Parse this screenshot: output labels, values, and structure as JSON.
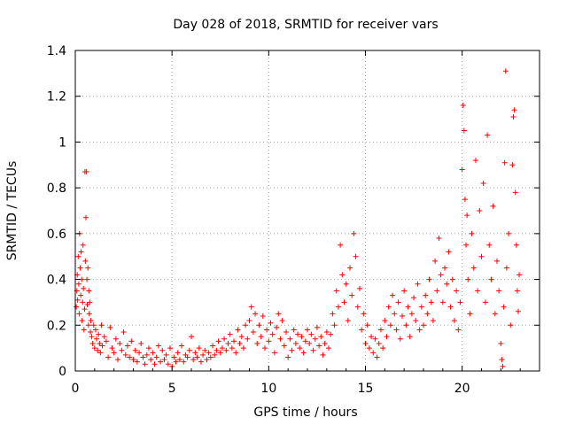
{
  "chart_data": {
    "type": "scatter",
    "title": "Day 028 of 2018, SRMTID for receiver vars",
    "xlabel": "GPS time / hours",
    "ylabel": "SRMTID / TECUs",
    "xlim": [
      0,
      24
    ],
    "ylim": [
      0,
      1.4
    ],
    "xticks": [
      0,
      5,
      10,
      15,
      20
    ],
    "yticks": [
      0,
      0.2,
      0.4,
      0.6,
      0.8,
      1,
      1.2,
      1.4
    ],
    "xtick_labels": [
      "0",
      "5",
      "10",
      "15",
      "20"
    ],
    "ytick_labels": [
      "0",
      "0.2",
      "0.4",
      "0.6",
      "0.8",
      "1",
      "1.2",
      "1.4"
    ],
    "grid": true,
    "marker": "+",
    "color": "#ff0000",
    "series": [
      {
        "name": "SRMTID",
        "points": [
          [
            0.05,
            0.28
          ],
          [
            0.08,
            0.35
          ],
          [
            0.1,
            0.42
          ],
          [
            0.12,
            0.31
          ],
          [
            0.15,
            0.5
          ],
          [
            0.18,
            0.38
          ],
          [
            0.2,
            0.25
          ],
          [
            0.22,
            0.6
          ],
          [
            0.25,
            0.45
          ],
          [
            0.28,
            0.33
          ],
          [
            0.3,
            0.52
          ],
          [
            0.33,
            0.4
          ],
          [
            0.35,
            0.22
          ],
          [
            0.38,
            0.3
          ],
          [
            0.4,
            0.55
          ],
          [
            0.42,
            0.36
          ],
          [
            0.45,
            0.18
          ],
          [
            0.48,
            0.27
          ],
          [
            0.5,
            0.87
          ],
          [
            0.52,
            0.48
          ],
          [
            0.55,
            0.67
          ],
          [
            0.58,
            0.87
          ],
          [
            0.6,
            0.4
          ],
          [
            0.62,
            0.29
          ],
          [
            0.65,
            0.45
          ],
          [
            0.68,
            0.2
          ],
          [
            0.7,
            0.35
          ],
          [
            0.72,
            0.25
          ],
          [
            0.75,
            0.3
          ],
          [
            0.78,
            0.17
          ],
          [
            0.8,
            0.22
          ],
          [
            0.85,
            0.15
          ],
          [
            0.9,
            0.12
          ],
          [
            0.95,
            0.2
          ],
          [
            1.0,
            0.1
          ],
          [
            1.05,
            0.18
          ],
          [
            1.1,
            0.14
          ],
          [
            1.15,
            0.09
          ],
          [
            1.2,
            0.16
          ],
          [
            1.25,
            0.12
          ],
          [
            1.3,
            0.08
          ],
          [
            1.35,
            0.2
          ],
          [
            1.4,
            0.11
          ],
          [
            1.5,
            0.15
          ],
          [
            1.6,
            0.13
          ],
          [
            1.7,
            0.06
          ],
          [
            1.8,
            0.19
          ],
          [
            1.9,
            0.1
          ],
          [
            2.0,
            0.08
          ],
          [
            2.1,
            0.14
          ],
          [
            2.2,
            0.05
          ],
          [
            2.3,
            0.12
          ],
          [
            2.4,
            0.09
          ],
          [
            2.5,
            0.17
          ],
          [
            2.6,
            0.07
          ],
          [
            2.7,
            0.11
          ],
          [
            2.8,
            0.06
          ],
          [
            2.9,
            0.13
          ],
          [
            3.0,
            0.05
          ],
          [
            3.1,
            0.09
          ],
          [
            3.2,
            0.04
          ],
          [
            3.3,
            0.08
          ],
          [
            3.4,
            0.12
          ],
          [
            3.5,
            0.06
          ],
          [
            3.6,
            0.03
          ],
          [
            3.7,
            0.07
          ],
          [
            3.8,
            0.1
          ],
          [
            3.9,
            0.05
          ],
          [
            4.0,
            0.08
          ],
          [
            4.1,
            0.03
          ],
          [
            4.2,
            0.06
          ],
          [
            4.3,
            0.11
          ],
          [
            4.4,
            0.04
          ],
          [
            4.5,
            0.09
          ],
          [
            4.6,
            0.05
          ],
          [
            4.7,
            0.07
          ],
          [
            4.8,
            0.03
          ],
          [
            4.9,
            0.1
          ],
          [
            5.0,
            0.02
          ],
          [
            5.1,
            0.06
          ],
          [
            5.2,
            0.04
          ],
          [
            5.3,
            0.08
          ],
          [
            5.4,
            0.05
          ],
          [
            5.5,
            0.11
          ],
          [
            5.6,
            0.04
          ],
          [
            5.7,
            0.07
          ],
          [
            5.8,
            0.06
          ],
          [
            5.9,
            0.09
          ],
          [
            6.0,
            0.15
          ],
          [
            6.1,
            0.05
          ],
          [
            6.2,
            0.08
          ],
          [
            6.3,
            0.06
          ],
          [
            6.4,
            0.1
          ],
          [
            6.5,
            0.04
          ],
          [
            6.6,
            0.07
          ],
          [
            6.7,
            0.09
          ],
          [
            6.8,
            0.05
          ],
          [
            6.9,
            0.08
          ],
          [
            7.0,
            0.06
          ],
          [
            7.1,
            0.11
          ],
          [
            7.2,
            0.07
          ],
          [
            7.3,
            0.09
          ],
          [
            7.4,
            0.13
          ],
          [
            7.5,
            0.08
          ],
          [
            7.6,
            0.1
          ],
          [
            7.7,
            0.14
          ],
          [
            7.8,
            0.09
          ],
          [
            7.9,
            0.12
          ],
          [
            8.0,
            0.16
          ],
          [
            8.1,
            0.1
          ],
          [
            8.2,
            0.13
          ],
          [
            8.3,
            0.08
          ],
          [
            8.4,
            0.18
          ],
          [
            8.5,
            0.12
          ],
          [
            8.6,
            0.15
          ],
          [
            8.7,
            0.1
          ],
          [
            8.8,
            0.2
          ],
          [
            8.9,
            0.14
          ],
          [
            9.0,
            0.22
          ],
          [
            9.1,
            0.28
          ],
          [
            9.2,
            0.17
          ],
          [
            9.3,
            0.25
          ],
          [
            9.4,
            0.12
          ],
          [
            9.5,
            0.2
          ],
          [
            9.6,
            0.15
          ],
          [
            9.7,
            0.24
          ],
          [
            9.8,
            0.1
          ],
          [
            9.9,
            0.18
          ],
          [
            10.0,
            0.13
          ],
          [
            10.1,
            0.21
          ],
          [
            10.2,
            0.16
          ],
          [
            10.3,
            0.08
          ],
          [
            10.4,
            0.19
          ],
          [
            10.5,
            0.25
          ],
          [
            10.6,
            0.14
          ],
          [
            10.7,
            0.22
          ],
          [
            10.8,
            0.11
          ],
          [
            10.9,
            0.17
          ],
          [
            11.0,
            0.06
          ],
          [
            11.1,
            0.14
          ],
          [
            11.2,
            0.09
          ],
          [
            11.3,
            0.18
          ],
          [
            11.4,
            0.12
          ],
          [
            11.5,
            0.16
          ],
          [
            11.6,
            0.1
          ],
          [
            11.7,
            0.15
          ],
          [
            11.8,
            0.08
          ],
          [
            11.9,
            0.13
          ],
          [
            12.0,
            0.18
          ],
          [
            12.1,
            0.12
          ],
          [
            12.2,
            0.16
          ],
          [
            12.3,
            0.09
          ],
          [
            12.4,
            0.14
          ],
          [
            12.5,
            0.19
          ],
          [
            12.6,
            0.11
          ],
          [
            12.7,
            0.15
          ],
          [
            12.8,
            0.07
          ],
          [
            12.9,
            0.12
          ],
          [
            13.0,
            0.17
          ],
          [
            13.1,
            0.1
          ],
          [
            13.2,
            0.16
          ],
          [
            13.3,
            0.25
          ],
          [
            13.4,
            0.2
          ],
          [
            13.5,
            0.35
          ],
          [
            13.6,
            0.28
          ],
          [
            13.7,
            0.55
          ],
          [
            13.8,
            0.42
          ],
          [
            13.9,
            0.3
          ],
          [
            14.0,
            0.38
          ],
          [
            14.1,
            0.22
          ],
          [
            14.2,
            0.45
          ],
          [
            14.3,
            0.33
          ],
          [
            14.4,
            0.6
          ],
          [
            14.5,
            0.5
          ],
          [
            14.6,
            0.28
          ],
          [
            14.7,
            0.36
          ],
          [
            14.8,
            0.18
          ],
          [
            14.9,
            0.25
          ],
          [
            15.0,
            0.12
          ],
          [
            15.1,
            0.2
          ],
          [
            15.2,
            0.1
          ],
          [
            15.3,
            0.15
          ],
          [
            15.4,
            0.08
          ],
          [
            15.5,
            0.14
          ],
          [
            15.6,
            0.06
          ],
          [
            15.7,
            0.12
          ],
          [
            15.8,
            0.18
          ],
          [
            15.9,
            0.1
          ],
          [
            16.0,
            0.22
          ],
          [
            16.1,
            0.15
          ],
          [
            16.2,
            0.28
          ],
          [
            16.3,
            0.2
          ],
          [
            16.4,
            0.33
          ],
          [
            16.5,
            0.25
          ],
          [
            16.6,
            0.18
          ],
          [
            16.7,
            0.3
          ],
          [
            16.8,
            0.14
          ],
          [
            16.9,
            0.24
          ],
          [
            17.0,
            0.35
          ],
          [
            17.1,
            0.2
          ],
          [
            17.2,
            0.28
          ],
          [
            17.3,
            0.15
          ],
          [
            17.4,
            0.25
          ],
          [
            17.5,
            0.32
          ],
          [
            17.6,
            0.22
          ],
          [
            17.7,
            0.38
          ],
          [
            17.8,
            0.18
          ],
          [
            17.9,
            0.28
          ],
          [
            18.0,
            0.2
          ],
          [
            18.1,
            0.33
          ],
          [
            18.2,
            0.25
          ],
          [
            18.3,
            0.4
          ],
          [
            18.4,
            0.3
          ],
          [
            18.5,
            0.22
          ],
          [
            18.6,
            0.48
          ],
          [
            18.7,
            0.35
          ],
          [
            18.8,
            0.58
          ],
          [
            18.9,
            0.42
          ],
          [
            19.0,
            0.3
          ],
          [
            19.1,
            0.45
          ],
          [
            19.2,
            0.38
          ],
          [
            19.3,
            0.52
          ],
          [
            19.4,
            0.28
          ],
          [
            19.5,
            0.4
          ],
          [
            19.6,
            0.22
          ],
          [
            19.7,
            0.35
          ],
          [
            19.8,
            0.18
          ],
          [
            19.9,
            0.3
          ],
          [
            20.0,
            0.88
          ],
          [
            20.05,
            1.16
          ],
          [
            20.1,
            1.05
          ],
          [
            20.15,
            0.75
          ],
          [
            20.2,
            0.55
          ],
          [
            20.25,
            0.68
          ],
          [
            20.3,
            0.4
          ],
          [
            20.4,
            0.25
          ],
          [
            20.5,
            0.6
          ],
          [
            20.6,
            0.45
          ],
          [
            20.7,
            0.92
          ],
          [
            20.8,
            0.35
          ],
          [
            20.9,
            0.7
          ],
          [
            21.0,
            0.5
          ],
          [
            21.1,
            0.82
          ],
          [
            21.2,
            0.3
          ],
          [
            21.3,
            1.03
          ],
          [
            21.4,
            0.55
          ],
          [
            21.5,
            0.4
          ],
          [
            21.6,
            0.72
          ],
          [
            21.7,
            0.25
          ],
          [
            21.8,
            0.48
          ],
          [
            21.9,
            0.35
          ],
          [
            22.0,
            0.12
          ],
          [
            22.05,
            0.05
          ],
          [
            22.1,
            0.02
          ],
          [
            22.15,
            0.28
          ],
          [
            22.2,
            0.91
          ],
          [
            22.25,
            1.31
          ],
          [
            22.3,
            0.45
          ],
          [
            22.4,
            0.6
          ],
          [
            22.5,
            0.2
          ],
          [
            22.6,
            0.9
          ],
          [
            22.65,
            1.11
          ],
          [
            22.7,
            1.14
          ],
          [
            22.75,
            0.78
          ],
          [
            22.8,
            0.55
          ],
          [
            22.85,
            0.35
          ],
          [
            22.9,
            0.26
          ],
          [
            22.95,
            0.42
          ]
        ]
      }
    ]
  }
}
